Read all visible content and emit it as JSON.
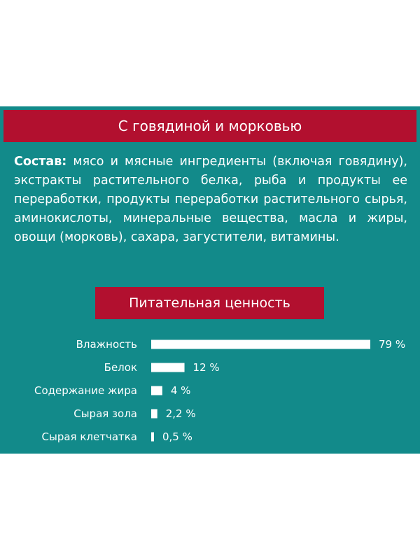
{
  "header": {
    "title": "С говядиной и морковью"
  },
  "composition": {
    "label": "Состав:",
    "text": "мясо и мясные ингредиенты (включая говядину), экстракты растительного белка, рыба и продукты ее переработки, продукты переработки растительного сырья, аминокислоты, минеральные вещества, масла и жиры, овощи (морковь), сахара, загустители, витамины."
  },
  "nutrition": {
    "title": "Питательная ценность"
  },
  "colors": {
    "panel": "#128a8a",
    "banner": "#b2102f",
    "text": "#ffffff",
    "bar": "#ffffff"
  },
  "chart_data": {
    "type": "bar",
    "orientation": "horizontal",
    "title": "Питательная ценность",
    "categories": [
      "Влажность",
      "Белок",
      "Содержание жира",
      "Сырая зола",
      "Сырая клетчатка"
    ],
    "values": [
      79,
      12,
      4,
      2.2,
      0.5
    ],
    "value_labels": [
      "79 %",
      "12 %",
      "4 %",
      "2,2 %",
      "0,5 %"
    ],
    "unit": "%",
    "xlim": [
      0,
      79
    ],
    "grid": false,
    "legend": "none"
  }
}
